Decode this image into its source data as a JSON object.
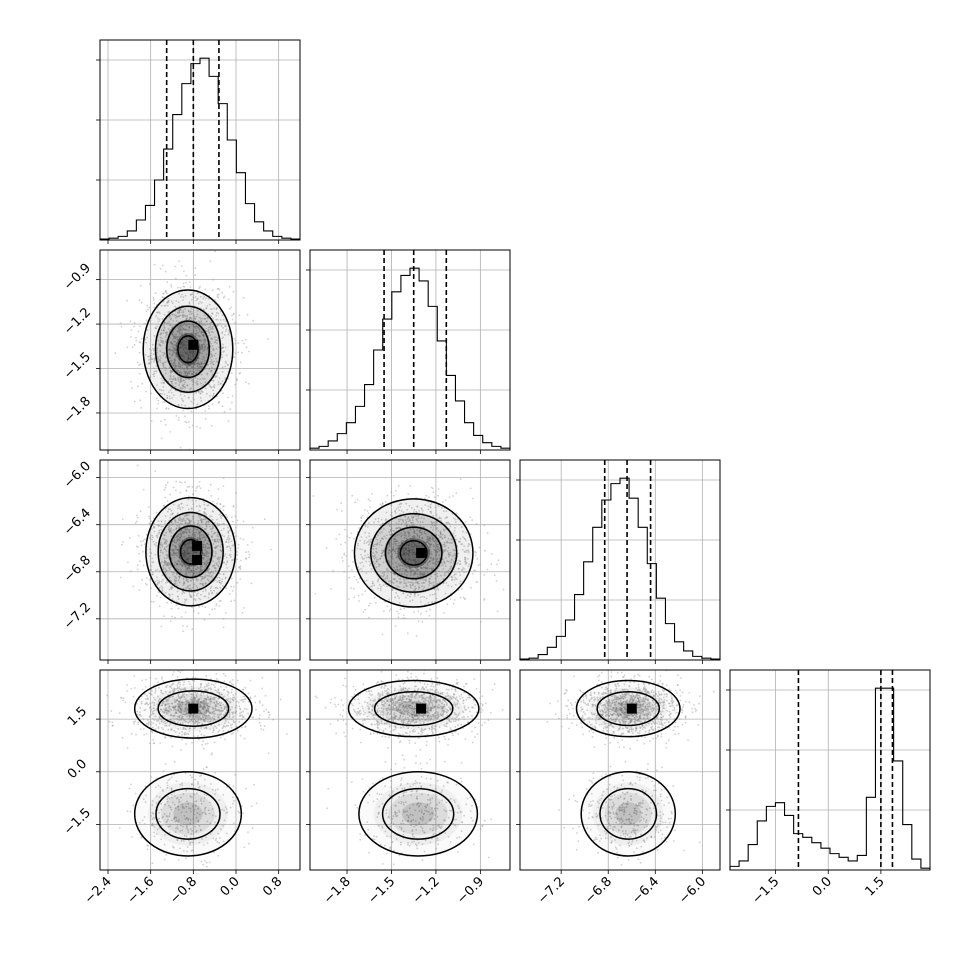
{
  "chart_data": {
    "type": "corner",
    "parameters": [
      {
        "range": [
          -2.55,
          1.2
        ],
        "ticks": [
          -2.4,
          -1.6,
          -0.8,
          0.0,
          0.8
        ],
        "quantiles": [
          -1.3,
          -0.8,
          -0.32
        ]
      },
      {
        "range": [
          -2.05,
          -0.7
        ],
        "ticks": [
          -1.8,
          -1.5,
          -1.2,
          -0.9
        ],
        "quantiles": [
          -1.55,
          -1.35,
          -1.13
        ]
      },
      {
        "range": [
          -7.55,
          -5.85
        ],
        "ticks": [
          -7.2,
          -6.8,
          -6.4,
          -6.0
        ],
        "quantiles": [
          -6.83,
          -6.64,
          -6.44
        ]
      },
      {
        "range": [
          -2.8,
          2.9
        ],
        "ticks": [
          -1.5,
          0.0,
          1.5
        ],
        "quantiles": [
          -0.85,
          1.5,
          1.83
        ]
      }
    ],
    "histograms": [
      {
        "values": [
          0.005,
          0.01,
          0.02,
          0.05,
          0.11,
          0.19,
          0.33,
          0.5,
          0.69,
          0.86,
          0.97,
          1.0,
          0.9,
          0.75,
          0.55,
          0.37,
          0.2,
          0.1,
          0.05,
          0.02,
          0.01,
          0.005
        ]
      },
      {
        "values": [
          0.01,
          0.02,
          0.05,
          0.09,
          0.15,
          0.24,
          0.36,
          0.55,
          0.72,
          0.87,
          0.96,
          1.0,
          0.93,
          0.79,
          0.6,
          0.41,
          0.27,
          0.15,
          0.08,
          0.04,
          0.02,
          0.01
        ]
      },
      {
        "values": [
          0.005,
          0.01,
          0.03,
          0.07,
          0.13,
          0.22,
          0.36,
          0.54,
          0.73,
          0.88,
          0.97,
          1.0,
          0.89,
          0.73,
          0.53,
          0.34,
          0.2,
          0.1,
          0.05,
          0.02,
          0.01,
          0.005
        ]
      },
      {
        "values": [
          0.02,
          0.05,
          0.14,
          0.27,
          0.35,
          0.37,
          0.3,
          0.2,
          0.18,
          0.15,
          0.12,
          0.09,
          0.07,
          0.05,
          0.08,
          0.4,
          1.0,
          1.0,
          0.6,
          0.25,
          0.06,
          0.01
        ]
      }
    ],
    "pairs": [
      {
        "row": 1,
        "col": 0,
        "modes": [
          {
            "x": -0.9,
            "y": -1.37,
            "sx": 0.42,
            "sy": 0.2
          }
        ],
        "hot": [
          {
            "x": -0.8,
            "y": -1.34
          }
        ]
      },
      {
        "row": 2,
        "col": 0,
        "modes": [
          {
            "x": -0.85,
            "y": -6.63,
            "sx": 0.42,
            "sy": 0.23
          }
        ],
        "hot": [
          {
            "x": -0.73,
            "y": -6.58
          },
          {
            "x": -0.73,
            "y": -6.7
          }
        ]
      },
      {
        "row": 2,
        "col": 1,
        "modes": [
          {
            "x": -1.35,
            "y": -6.64,
            "sx": 0.2,
            "sy": 0.23
          }
        ],
        "hot": [
          {
            "x": -1.3,
            "y": -6.64
          }
        ]
      },
      {
        "row": 3,
        "col": 0,
        "modes": [
          {
            "x": -0.8,
            "y": 1.8,
            "sx": 0.55,
            "sy": 0.42,
            "w": 0.75
          },
          {
            "x": -0.9,
            "y": -1.2,
            "sx": 0.5,
            "sy": 0.6,
            "w": 0.25
          }
        ],
        "hot": [
          {
            "x": -0.8,
            "y": 1.8
          }
        ]
      },
      {
        "row": 3,
        "col": 1,
        "modes": [
          {
            "x": -1.35,
            "y": 1.8,
            "sx": 0.22,
            "sy": 0.4,
            "w": 0.75
          },
          {
            "x": -1.32,
            "y": -1.2,
            "sx": 0.2,
            "sy": 0.6,
            "w": 0.25
          }
        ],
        "hot": [
          {
            "x": -1.3,
            "y": 1.8
          }
        ]
      },
      {
        "row": 3,
        "col": 2,
        "modes": [
          {
            "x": -6.63,
            "y": 1.8,
            "sx": 0.22,
            "sy": 0.4,
            "w": 0.75
          },
          {
            "x": -6.63,
            "y": -1.2,
            "sx": 0.2,
            "sy": 0.6,
            "w": 0.25
          }
        ],
        "hot": [
          {
            "x": -6.6,
            "y": 1.8
          }
        ]
      }
    ],
    "grid": true,
    "colors": {
      "ink": "#000000",
      "grid": "#b0b0b0",
      "points": "#9a9a9a"
    }
  }
}
